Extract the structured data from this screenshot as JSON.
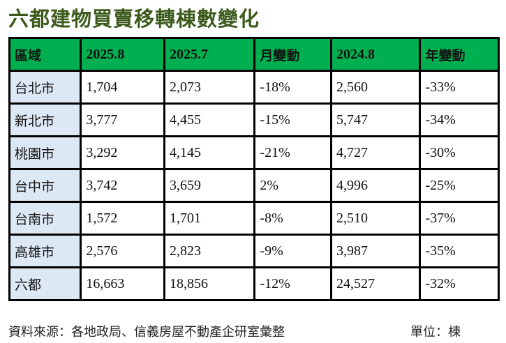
{
  "title": "六都建物買賣移轉棟數變化",
  "headers": [
    "區域",
    "2025.8",
    "2025.7",
    "月變動",
    "2024.8",
    "年變動"
  ],
  "rows": [
    [
      "台北市",
      "1,704",
      "2,073",
      "-18%",
      "2,560",
      "-33%"
    ],
    [
      "新北市",
      "3,777",
      "4,455",
      "-15%",
      "5,747",
      "-34%"
    ],
    [
      "桃園市",
      "3,292",
      "4,145",
      "-21%",
      "4,727",
      "-30%"
    ],
    [
      "台中市",
      "3,742",
      "3,659",
      "2%",
      "4,996",
      "-25%"
    ],
    [
      "台南市",
      "1,572",
      "1,701",
      "-8%",
      "2,510",
      "-37%"
    ],
    [
      "高雄市",
      "2,576",
      "2,823",
      "-9%",
      "3,987",
      "-35%"
    ],
    [
      "六都",
      "16,663",
      "18,856",
      "-12%",
      "24,527",
      "-32%"
    ]
  ],
  "source": "資料來源：各地政局、信義房屋不動產企研室彙整",
  "unit": "單位：棟",
  "colors": {
    "title": "#3b5a1c",
    "header_bg": "#00b050",
    "region_bg": "#dde8f5"
  }
}
